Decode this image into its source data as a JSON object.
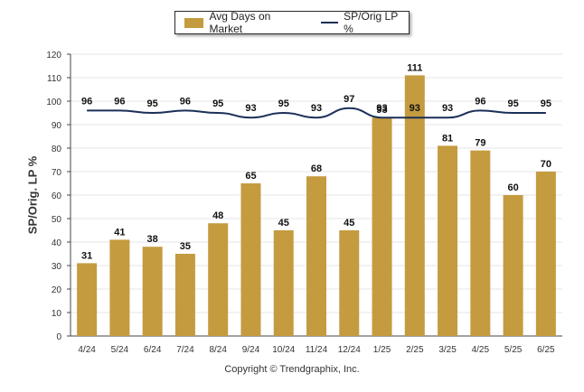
{
  "legend": {
    "bar_label": "Avg Days on Market",
    "line_label": "SP/Orig LP %"
  },
  "copyright": "Copyright © Trendgraphix, Inc.",
  "colors": {
    "bar": "#c49b3f",
    "line": "#1b2f57",
    "grid": "#e6e6e6",
    "axis": "#444444"
  },
  "chart_data": {
    "type": "bar",
    "title": "",
    "xlabel": "",
    "ylabel": "SP/Orig. LP %",
    "ylim": [
      0,
      120
    ],
    "yticks": [
      0,
      10,
      20,
      30,
      40,
      50,
      60,
      70,
      80,
      90,
      100,
      110,
      120
    ],
    "grid": true,
    "legend_position": "top-center",
    "categories": [
      "4/24",
      "5/24",
      "6/24",
      "7/24",
      "8/24",
      "9/24",
      "10/24",
      "11/24",
      "12/24",
      "1/25",
      "2/25",
      "3/25",
      "4/25",
      "5/25",
      "6/25"
    ],
    "series": [
      {
        "name": "Avg Days on Market",
        "type": "bar",
        "values": [
          31,
          41,
          38,
          35,
          48,
          65,
          45,
          68,
          45,
          93,
          111,
          81,
          79,
          60,
          70
        ]
      },
      {
        "name": "SP/Orig LP %",
        "type": "line",
        "values": [
          96,
          96,
          95,
          96,
          95,
          93,
          95,
          93,
          97,
          93,
          93,
          93,
          96,
          95,
          95
        ]
      }
    ]
  }
}
